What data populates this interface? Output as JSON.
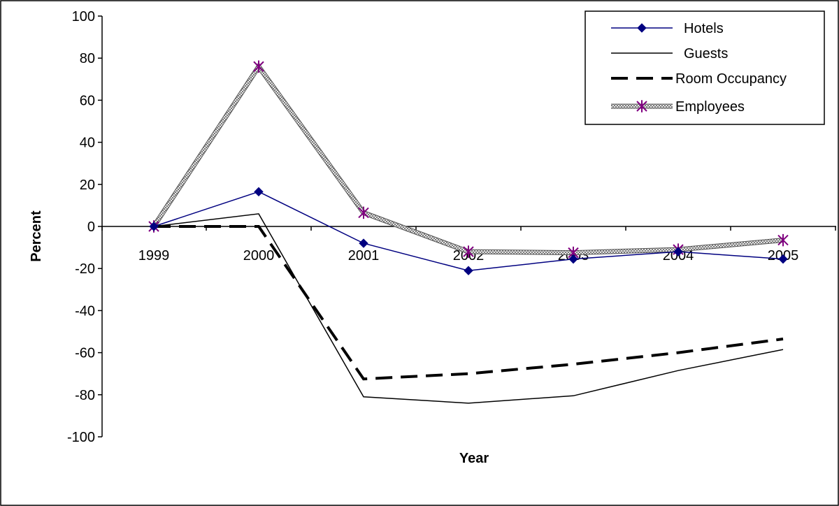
{
  "chart_data": {
    "type": "line",
    "title": "",
    "xlabel": "Year",
    "ylabel": "Percent",
    "categories": [
      "1999",
      "2000",
      "2001",
      "2002",
      "2003",
      "2004",
      "2005"
    ],
    "ylim": [
      -100,
      100
    ],
    "yticks": [
      "100",
      "80",
      "60",
      "40",
      "20",
      "0",
      "-20",
      "-40",
      "-60",
      "-80",
      "-100"
    ],
    "grid": false,
    "legend_position": "top-right",
    "series": [
      {
        "name": "Hotels",
        "values": [
          0,
          16.5,
          -8,
          -21,
          -15.5,
          -12,
          -15.5
        ],
        "color": "#000080",
        "style": "solid-diamond"
      },
      {
        "name": "Guests",
        "values": [
          0,
          6,
          -81,
          -84,
          -80.5,
          -68.5,
          -58.5
        ],
        "color": "#000000",
        "style": "solid-thin"
      },
      {
        "name": "Room Occupancy",
        "values": [
          0,
          0,
          -72.5,
          -70,
          -65.5,
          -60,
          -53.5
        ],
        "color": "#000000",
        "style": "dashed-thick"
      },
      {
        "name": "Employees",
        "values": [
          0,
          76,
          6.5,
          -12,
          -12.5,
          -11,
          -6.5
        ],
        "color": "#800080",
        "style": "patterned-asterisk"
      }
    ]
  }
}
